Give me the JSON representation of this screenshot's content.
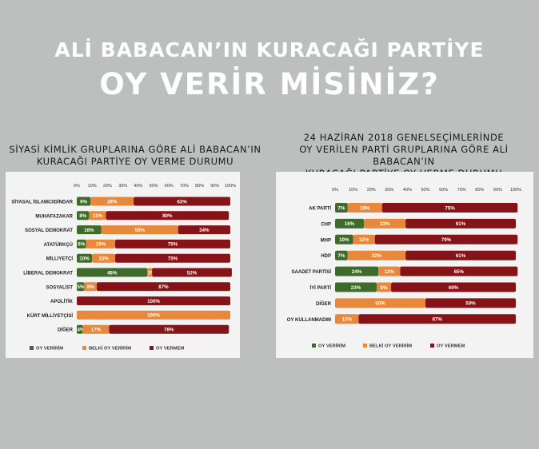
{
  "headline": {
    "line1": "ALİ BABACAN’IN KURACAĞI PARTİYE",
    "line2": "OY VERİR MİSİNİZ?"
  },
  "colors": {
    "background": "#bdbebe",
    "oy_veririm": "#3e6b2a",
    "belki": "#e8883a",
    "oy_vermem": "#861317"
  },
  "chart_data": [
    {
      "type": "bar",
      "orientation": "horizontal",
      "stacked": true,
      "title_lines": [
        "SİYASİ KİMLİK GRUPLARINA GÖRE ALİ BABACAN’IN",
        "KURACAĞI PARTİYE OY VERME DURUMU"
      ],
      "ticks": [
        "0%",
        "10%",
        "20%",
        "30%",
        "40%",
        "50%",
        "60%",
        "70%",
        "80%",
        "90%",
        "100%"
      ],
      "xlim": [
        0,
        100
      ],
      "legend_position": "bottom",
      "categories": [
        "SİYASAL İSLAMCI/DİNDAR",
        "MUHAFAZAKAR",
        "SOSYAL DEMOKRAT",
        "ATATÜRKÇÜ",
        "MİLLİYETÇİ",
        "LİBERAL DEMOKRAT",
        "SOSYALİST",
        "APOLİTİK",
        "KÜRT MİLLİYETÇİSİ",
        "DİĞER"
      ],
      "series": [
        {
          "name": "OY VERİRİM",
          "color": "#3e6b2a",
          "values": [
            9,
            8,
            16,
            6,
            10,
            46,
            5,
            0,
            0,
            4
          ]
        },
        {
          "name": "BELKİ OY VERİRİM",
          "color": "#e8883a",
          "values": [
            28,
            11,
            50,
            19,
            15,
            3,
            8,
            0,
            100,
            17
          ]
        },
        {
          "name": "OY VERMEM",
          "color": "#861317",
          "values": [
            63,
            80,
            34,
            75,
            75,
            52,
            87,
            100,
            0,
            78
          ]
        }
      ],
      "labels": [
        [
          "9%",
          "28%",
          "63%"
        ],
        [
          "8%",
          "11%",
          "80%"
        ],
        [
          "16%",
          "50%",
          "34%"
        ],
        [
          "6%",
          "19%",
          "75%"
        ],
        [
          "10%",
          "15%",
          "75%"
        ],
        [
          "46%",
          "3%",
          "52%"
        ],
        [
          "5%",
          "8%",
          "87%"
        ],
        [
          "",
          "",
          "100%"
        ],
        [
          "",
          "100%",
          ""
        ],
        [
          "4%",
          "17%",
          "78%"
        ]
      ]
    },
    {
      "type": "bar",
      "orientation": "horizontal",
      "stacked": true,
      "title_lines": [
        "24 HAZİRAN 2018 GENELSEÇİMLERİNDE",
        "OY VERİLEN PARTİ GRUPLARINA GÖRE ALİ BABACAN’IN",
        "KURACAĞI PARTİYE OY VERME DURUMU"
      ],
      "ticks": [
        "0%",
        "10%",
        "20%",
        "30%",
        "40%",
        "50%",
        "60%",
        "70%",
        "80%",
        "90%",
        "100%"
      ],
      "xlim": [
        0,
        100
      ],
      "legend_position": "bottom",
      "categories": [
        "AK PARTİ",
        "CHP",
        "MHP",
        "HDP",
        "SAADET PARTİSİ",
        "İYİ PARTİ",
        "DİĞER",
        "OY KULLANMADIM"
      ],
      "series": [
        {
          "name": "OY VERİRİM",
          "color": "#3e6b2a",
          "values": [
            7,
            16,
            10,
            7,
            24,
            23,
            0,
            0
          ]
        },
        {
          "name": "BELKİ OY VERİRİM",
          "color": "#e8883a",
          "values": [
            19,
            23,
            12,
            32,
            12,
            8,
            50,
            13
          ]
        },
        {
          "name": "OY VERMEM",
          "color": "#861317",
          "values": [
            75,
            61,
            79,
            61,
            65,
            69,
            50,
            87
          ]
        }
      ],
      "labels": [
        [
          "7%",
          "19%",
          "75%"
        ],
        [
          "16%",
          "23%",
          "61%"
        ],
        [
          "10%",
          "12%",
          "79%"
        ],
        [
          "7%",
          "32%",
          "61%"
        ],
        [
          "24%",
          "12%",
          "65%"
        ],
        [
          "23%",
          "8%",
          "69%"
        ],
        [
          "",
          "50%",
          "50%"
        ],
        [
          "",
          "13%",
          "87%"
        ]
      ]
    }
  ]
}
